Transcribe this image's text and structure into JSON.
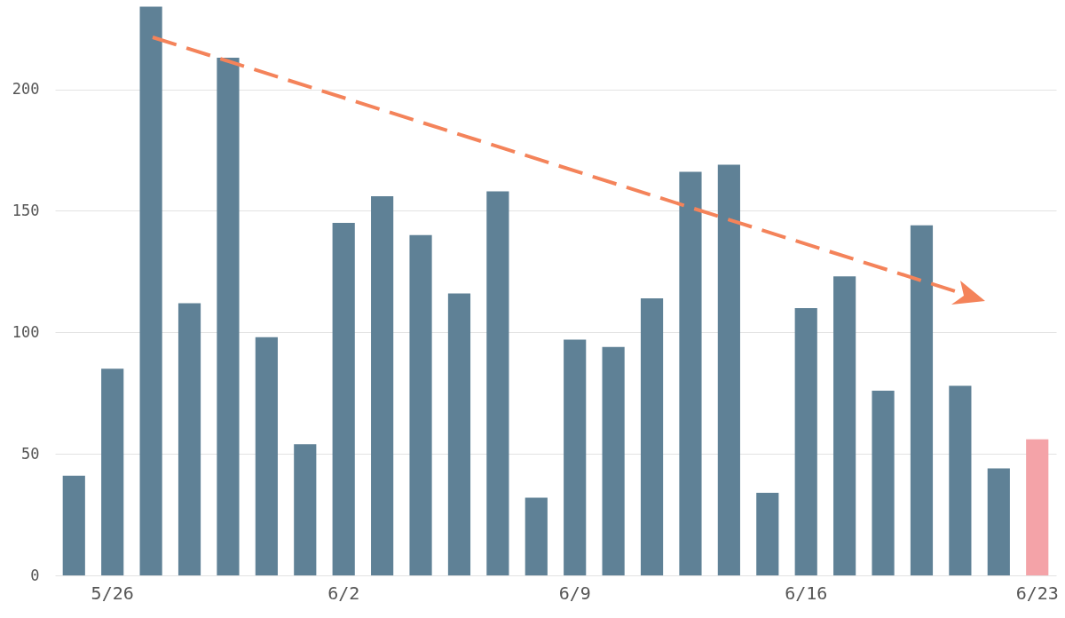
{
  "chart_data": {
    "type": "bar",
    "categories": [
      null,
      "5/26",
      null,
      null,
      null,
      null,
      null,
      "6/2",
      null,
      null,
      null,
      null,
      null,
      "6/9",
      null,
      null,
      null,
      null,
      null,
      "6/16",
      null,
      null,
      null,
      null,
      null,
      "6/23"
    ],
    "values": [
      41,
      85,
      234,
      112,
      213,
      98,
      54,
      145,
      156,
      140,
      116,
      158,
      32,
      97,
      94,
      114,
      166,
      169,
      34,
      110,
      123,
      76,
      144,
      78,
      44,
      56
    ],
    "colors": [
      "#5f8196",
      "#5f8196",
      "#5f8196",
      "#5f8196",
      "#5f8196",
      "#5f8196",
      "#5f8196",
      "#5f8196",
      "#5f8196",
      "#5f8196",
      "#5f8196",
      "#5f8196",
      "#5f8196",
      "#5f8196",
      "#5f8196",
      "#5f8196",
      "#5f8196",
      "#5f8196",
      "#5f8196",
      "#5f8196",
      "#5f8196",
      "#5f8196",
      "#5f8196",
      "#5f8196",
      "#5f8196",
      "#f4a3a8"
    ],
    "ylim": [
      0,
      236
    ],
    "yticks": [
      0,
      50,
      100,
      150,
      200
    ],
    "grid": "y"
  }
}
